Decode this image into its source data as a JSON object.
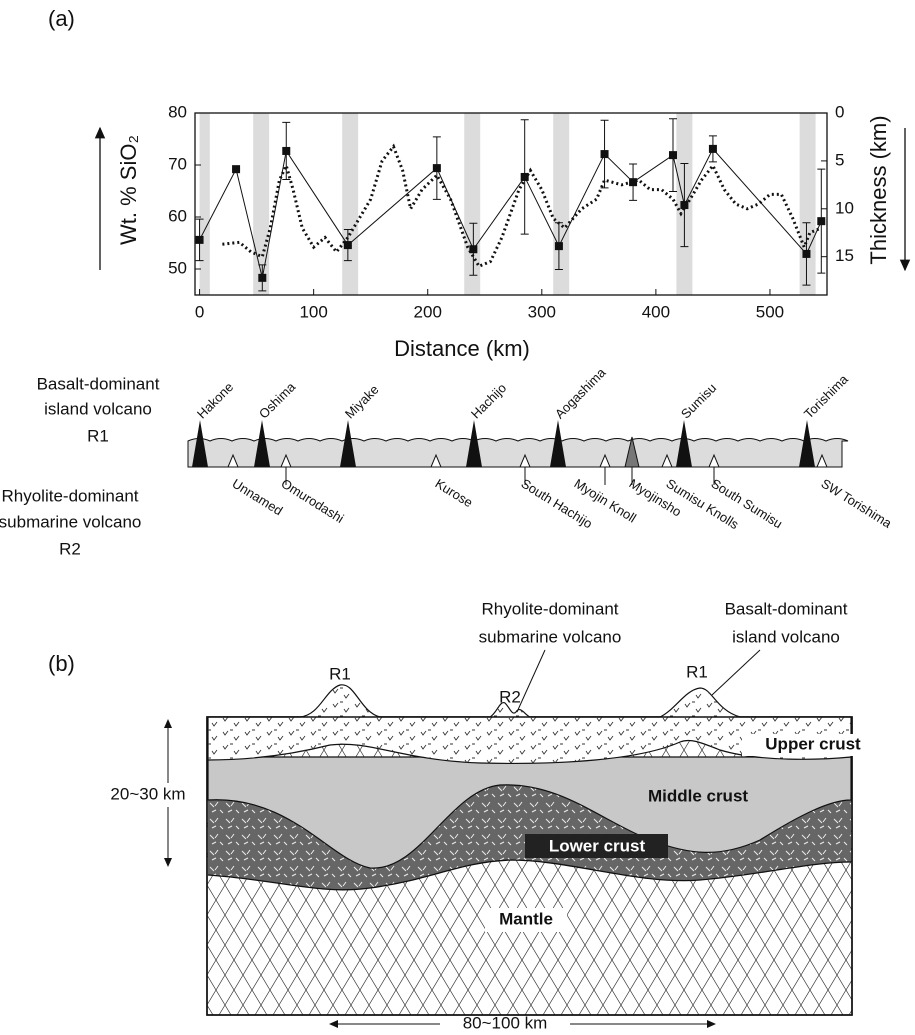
{
  "chart_data": {
    "type": "line",
    "panel_label": "(a)",
    "x_label": "Distance (km)",
    "y_label": "Wt. % SiO₂",
    "y2_label": "Thickness (km)",
    "xlim": [
      -4,
      550
    ],
    "xticks": [
      0,
      100,
      200,
      300,
      400,
      500
    ],
    "ylim": [
      45,
      80
    ],
    "yticks": [
      50,
      60,
      70,
      80
    ],
    "y2lim": [
      0,
      19
    ],
    "y2ticks": [
      0,
      5,
      10,
      15
    ],
    "y2_inverted": true,
    "bands": [
      [
        0,
        9
      ],
      [
        47,
        61
      ],
      [
        125,
        139
      ],
      [
        232,
        246
      ],
      [
        310,
        324
      ],
      [
        418,
        432
      ],
      [
        526,
        540
      ]
    ],
    "sio2_x": [
      0,
      32,
      55,
      76,
      130,
      208,
      240,
      285,
      315,
      355,
      380,
      415,
      425,
      450,
      532,
      545
    ],
    "sio2": [
      55.6,
      69.2,
      48.3,
      72.7,
      54.6,
      69.4,
      53.8,
      67.7,
      54.4,
      72.1,
      66.7,
      71.9,
      62.3,
      73.1,
      52.9,
      59.2
    ],
    "sio2_error": [
      4,
      0,
      2.5,
      5.5,
      3,
      6,
      5,
      11,
      4.5,
      6.5,
      3.5,
      7,
      8,
      2.5,
      6,
      10
    ],
    "thickness_x": [
      20,
      35,
      45,
      55,
      62,
      70,
      76,
      82,
      90,
      100,
      110,
      120,
      130,
      140,
      150,
      160,
      170,
      178,
      185,
      195,
      208,
      220,
      235,
      245,
      255,
      265,
      280,
      290,
      300,
      310,
      320,
      335,
      348,
      355,
      370,
      385,
      395,
      405,
      415,
      422,
      430,
      440,
      450,
      460,
      470,
      480,
      490,
      500,
      510,
      520,
      530,
      535,
      545
    ],
    "thickness": [
      13.7,
      13.5,
      14.5,
      15,
      12,
      7,
      5.5,
      8,
      12,
      14,
      13,
      14.5,
      13,
      11,
      9,
      5,
      3.5,
      6,
      10,
      8,
      6.5,
      9,
      14,
      16,
      15.5,
      13,
      8,
      6,
      8,
      11,
      12,
      10,
      9,
      7,
      7.5,
      7,
      8,
      8,
      9,
      10.5,
      9,
      7,
      5.5,
      8,
      9.5,
      10,
      9.5,
      8.5,
      8.5,
      11,
      14,
      12.5,
      12
    ],
    "color": "#111111"
  },
  "volcano_diagram": {
    "r1_label": [
      "Basalt-dominant",
      "island volcano",
      "R1"
    ],
    "r2_label": [
      "Rhyolite-dominant",
      "submarine volcano",
      "R2"
    ],
    "islands": [
      "Hakone",
      "Oshima",
      "Miyake",
      "Hachijo",
      "Aogashima",
      "Sumisu",
      "Torishima"
    ],
    "submarine": [
      "Unnamed",
      "Omurodashi",
      "Kurose",
      "South Hachijo",
      "Myojin Knoll",
      "Myojinsho",
      "Sumisu Knolls",
      "South Sumisu",
      "SW Torishima"
    ]
  },
  "cross_section": {
    "panel_label": "(b)",
    "r1_left": "R1",
    "r2": "R2",
    "r1_right": "R1",
    "r2_callout": [
      "Rhyolite-dominant",
      "submarine volcano"
    ],
    "r1_callout": [
      "Basalt-dominant",
      "island volcano"
    ],
    "upper": "Upper crust",
    "middle": "Middle crust",
    "lower": "Lower crust",
    "mantle": "Mantle",
    "depth": "20~30 km",
    "width": "80~100 km"
  }
}
